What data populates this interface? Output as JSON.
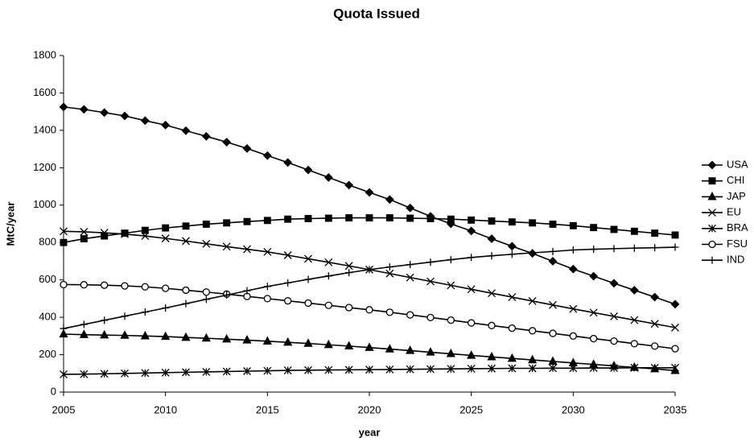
{
  "chart_data": {
    "type": "line",
    "title": "Quota Issued",
    "x_label": "year",
    "y_label": "MtC/year",
    "x": [
      2005,
      2006,
      2007,
      2008,
      2009,
      2010,
      2011,
      2012,
      2013,
      2014,
      2015,
      2016,
      2017,
      2018,
      2019,
      2020,
      2021,
      2022,
      2023,
      2024,
      2025,
      2026,
      2027,
      2028,
      2029,
      2030,
      2031,
      2032,
      2033,
      2034,
      2035
    ],
    "xlim": [
      2005,
      2035
    ],
    "xticks": [
      2005,
      2010,
      2015,
      2020,
      2025,
      2030,
      2035
    ],
    "ylim": [
      0,
      1800
    ],
    "yticks": [
      0,
      200,
      400,
      600,
      800,
      1000,
      1200,
      1400,
      1600,
      1800
    ],
    "grid": false,
    "legend": "right",
    "series": [
      {
        "name": "USA",
        "color": "#000000",
        "marker": "diamond",
        "values": [
          1525,
          1512,
          1495,
          1477,
          1452,
          1428,
          1398,
          1368,
          1337,
          1303,
          1265,
          1228,
          1188,
          1148,
          1107,
          1068,
          1030,
          985,
          940,
          900,
          862,
          820,
          780,
          742,
          700,
          658,
          620,
          582,
          545,
          508,
          470
        ]
      },
      {
        "name": "CHI",
        "color": "#000000",
        "marker": "square",
        "values": [
          800,
          820,
          835,
          850,
          865,
          878,
          888,
          898,
          905,
          912,
          918,
          925,
          928,
          930,
          932,
          932,
          932,
          930,
          928,
          925,
          920,
          915,
          910,
          905,
          898,
          890,
          880,
          870,
          860,
          850,
          840
        ]
      },
      {
        "name": "JAP",
        "color": "#000000",
        "marker": "triangle",
        "values": [
          310,
          307,
          305,
          303,
          300,
          297,
          292,
          288,
          283,
          278,
          272,
          266,
          260,
          253,
          246,
          238,
          230,
          222,
          213,
          205,
          196,
          188,
          180,
          172,
          164,
          156,
          148,
          140,
          132,
          124,
          115
        ]
      },
      {
        "name": "EU",
        "color": "#000000",
        "marker": "x",
        "values": [
          860,
          857,
          852,
          845,
          835,
          822,
          808,
          793,
          778,
          764,
          750,
          732,
          713,
          694,
          675,
          655,
          634,
          613,
          592,
          571,
          550,
          529,
          508,
          487,
          466,
          445,
          425,
          405,
          385,
          365,
          345
        ]
      },
      {
        "name": "BRA",
        "color": "#000000",
        "marker": "asterisk",
        "values": [
          95,
          96,
          98,
          100,
          102,
          104,
          106,
          108,
          110,
          112,
          114,
          116,
          117,
          118,
          119,
          120,
          121,
          122,
          123,
          124,
          125,
          126,
          127,
          127,
          128,
          128,
          129,
          129,
          130,
          130,
          130
        ]
      },
      {
        "name": "FSU",
        "color": "#000000",
        "marker": "circle",
        "values": [
          575,
          574,
          572,
          568,
          563,
          555,
          545,
          535,
          524,
          512,
          500,
          488,
          476,
          464,
          452,
          440,
          427,
          413,
          399,
          385,
          370,
          356,
          342,
          328,
          314,
          300,
          286,
          273,
          259,
          246,
          232
        ]
      },
      {
        "name": "IND",
        "color": "#000000",
        "marker": "plus",
        "values": [
          340,
          362,
          384,
          406,
          428,
          450,
          473,
          496,
          519,
          542,
          565,
          584,
          603,
          621,
          639,
          655,
          669,
          682,
          695,
          708,
          720,
          729,
          737,
          745,
          752,
          760,
          764,
          767,
          770,
          772,
          775
        ]
      }
    ]
  }
}
